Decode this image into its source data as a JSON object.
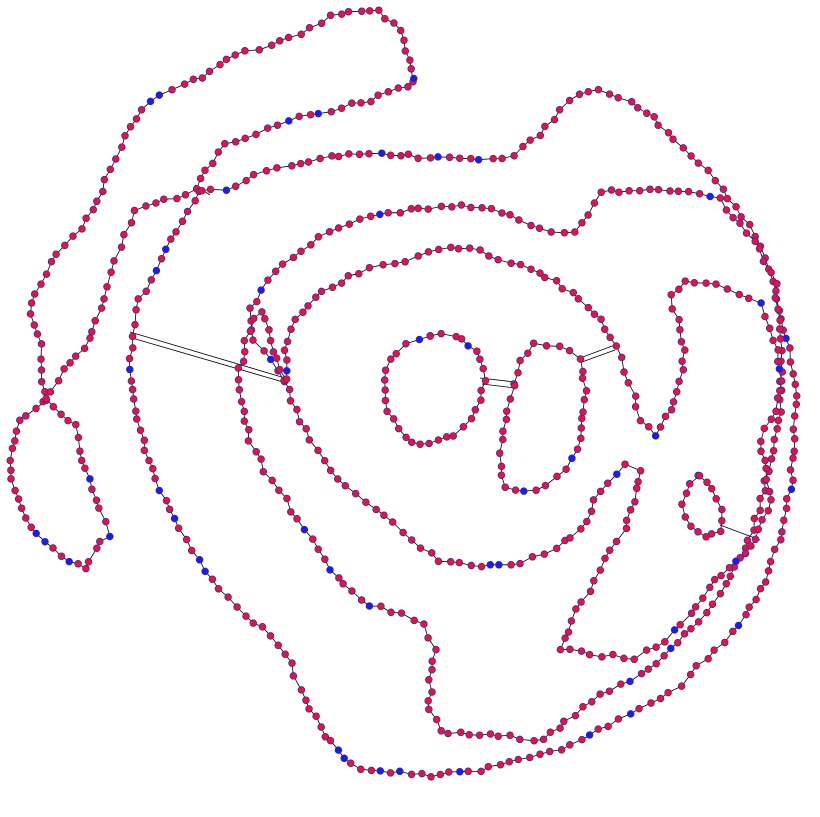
{
  "graph": {
    "colors": {
      "background": "#ffffff",
      "edge": "#000000",
      "node_fill": "#e8104a",
      "node_accent": "#1a1aff",
      "node_stroke": "#3a2a8a"
    },
    "node_shape": "circle"
  }
}
